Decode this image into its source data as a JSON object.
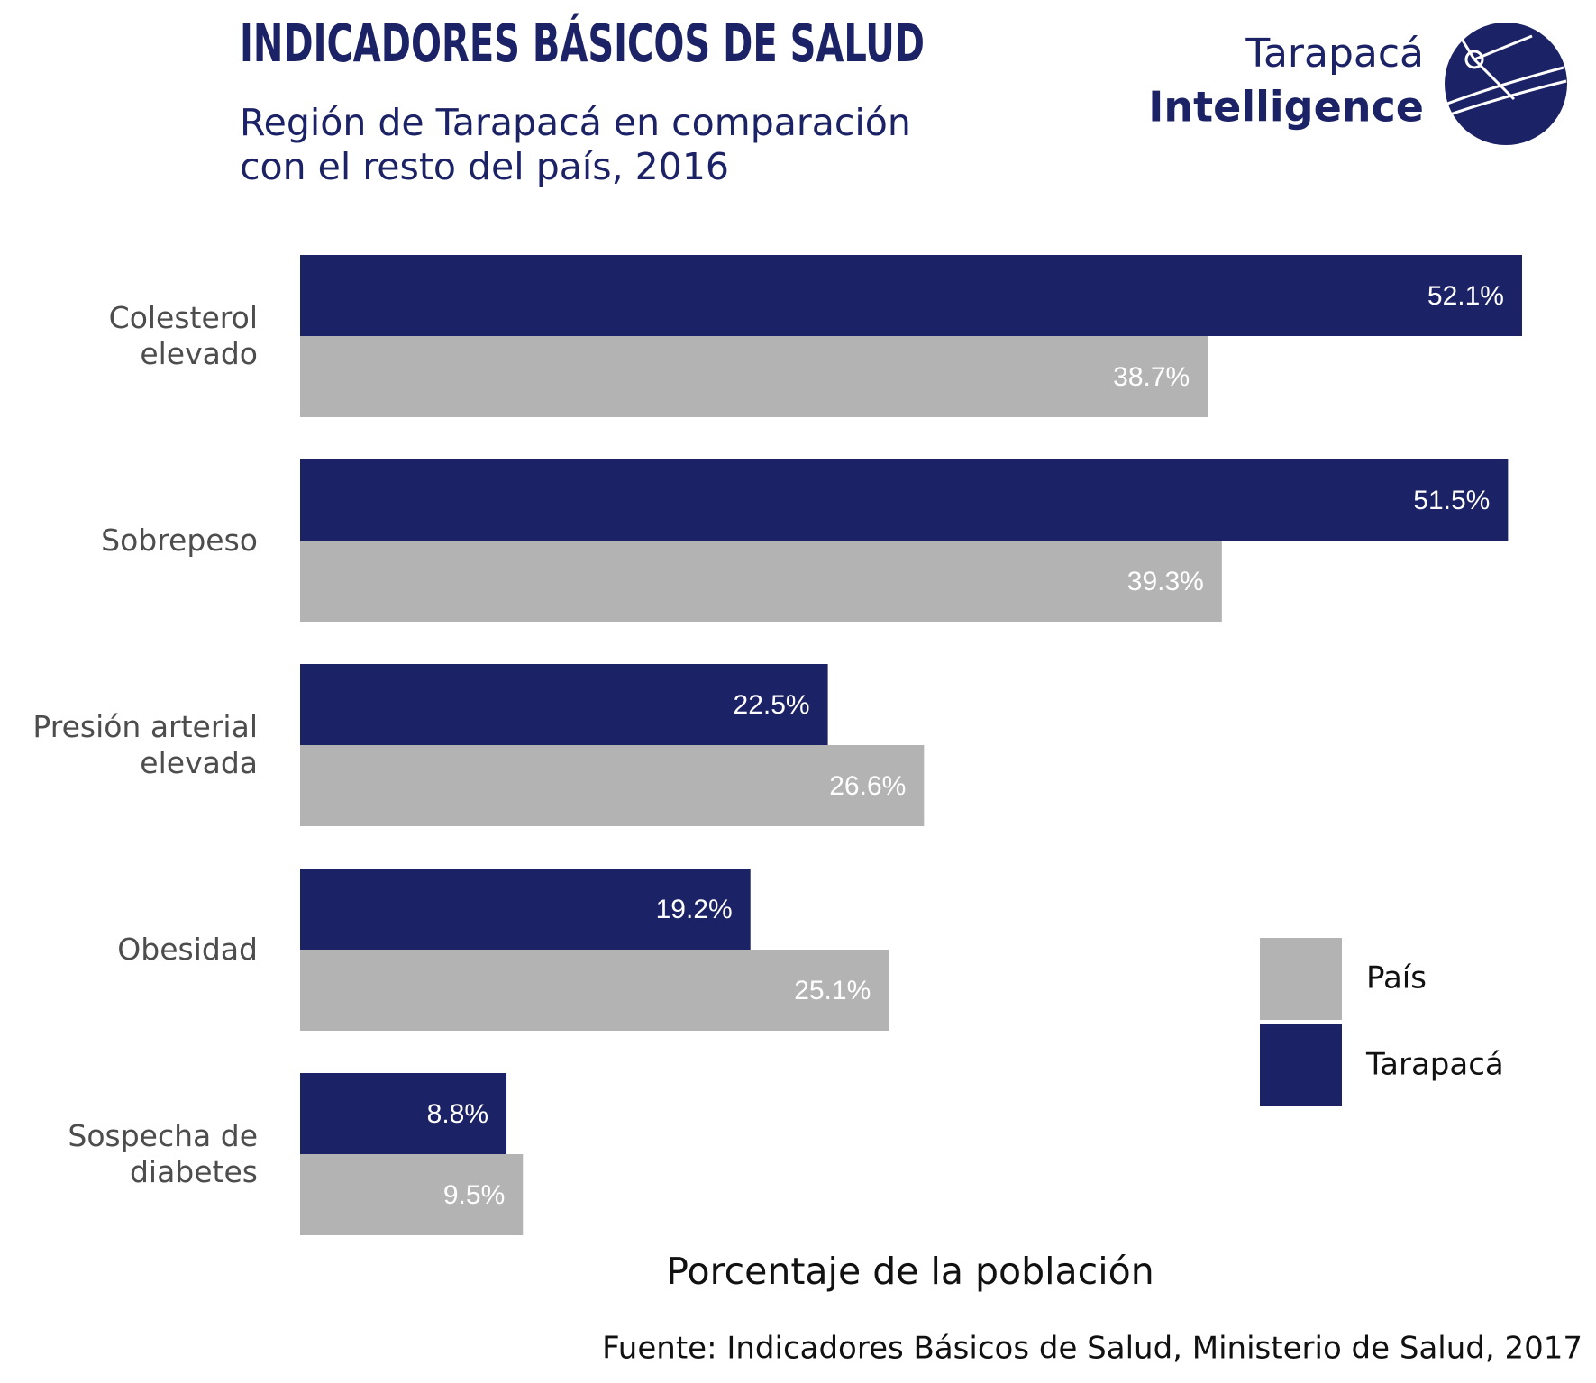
{
  "chart_data": {
    "type": "bar",
    "orientation": "horizontal",
    "title": "INDICADORES BÁSICOS DE SALUD",
    "subtitle": [
      "Región de Tarapacá en comparación",
      "con el resto del país, 2016"
    ],
    "logo": [
      "Tarapacá",
      "Intelligence"
    ],
    "categories": [
      "Colesterol elevado",
      "Sobrepeso",
      "Presión arterial elevada",
      "Obesidad",
      "Sospecha de diabetes"
    ],
    "series": [
      {
        "name": "País",
        "color": "#b3b3b3",
        "values": [
          38.7,
          39.3,
          26.6,
          25.1,
          9.5
        ],
        "value_labels": [
          "38.7%",
          "39.3%",
          "26.6%",
          "25.1%",
          "9.5%"
        ]
      },
      {
        "name": "Tarapacá",
        "color": "#1c2266",
        "values": [
          52.1,
          51.5,
          22.5,
          19.2,
          8.8
        ],
        "value_labels": [
          "52.1%",
          "51.5%",
          "22.5%",
          "19.2%",
          "8.8%"
        ]
      }
    ],
    "xlabel": "Porcentaje de la población",
    "source": "Fuente: Indicadores Básicos de Salud, Ministerio de Salud, 2017",
    "legend": "right"
  }
}
